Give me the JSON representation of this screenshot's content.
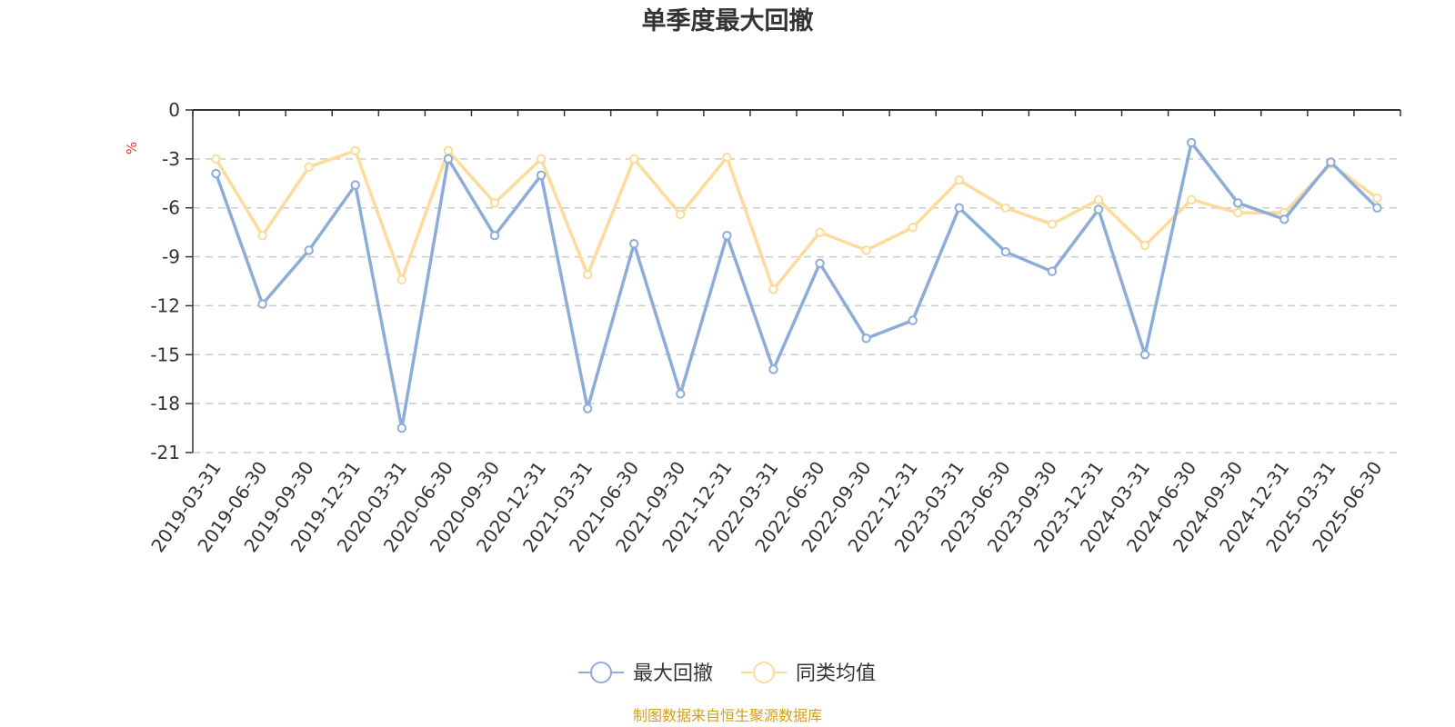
{
  "chart_data": {
    "type": "line",
    "title": "单季度最大回撤",
    "ylabel": "%",
    "xlabel": "",
    "ylim": [
      -21,
      0
    ],
    "yticks": [
      0,
      -3,
      -6,
      -9,
      -12,
      -15,
      -18,
      -21
    ],
    "grid": true,
    "legend_position": "bottom",
    "categories": [
      "2019-03-31",
      "2019-06-30",
      "2019-09-30",
      "2019-12-31",
      "2020-03-31",
      "2020-06-30",
      "2020-09-30",
      "2020-12-31",
      "2021-03-31",
      "2021-06-30",
      "2021-09-30",
      "2021-12-31",
      "2022-03-31",
      "2022-06-30",
      "2022-09-30",
      "2022-12-31",
      "2023-03-31",
      "2023-06-30",
      "2023-09-30",
      "2023-12-31",
      "2024-03-31",
      "2024-06-30",
      "2024-09-30",
      "2024-12-31",
      "2025-03-31",
      "2025-06-30"
    ],
    "series": [
      {
        "name": "最大回撤",
        "color": "#8eacd8",
        "values": [
          -3.9,
          -11.9,
          -8.6,
          -4.6,
          -19.5,
          -3.0,
          -7.7,
          -4.0,
          -18.3,
          -8.2,
          -17.4,
          -7.7,
          -15.9,
          -9.4,
          -14.0,
          -12.9,
          -6.0,
          -8.7,
          -9.9,
          -6.1,
          -15.0,
          -2.0,
          -5.7,
          -6.7,
          -3.2,
          -6.0
        ]
      },
      {
        "name": "同类均值",
        "color": "#fcdb9b",
        "values": [
          -3.0,
          -7.7,
          -3.5,
          -2.5,
          -10.4,
          -2.5,
          -5.7,
          -3.0,
          -10.1,
          -3.0,
          -6.4,
          -2.9,
          -11.0,
          -7.5,
          -8.6,
          -7.2,
          -4.3,
          -6.0,
          -7.0,
          -5.5,
          -8.3,
          -5.5,
          -6.3,
          -6.3,
          -3.3,
          -5.4
        ]
      }
    ]
  },
  "source_note": "制图数据来自恒生聚源数据库"
}
